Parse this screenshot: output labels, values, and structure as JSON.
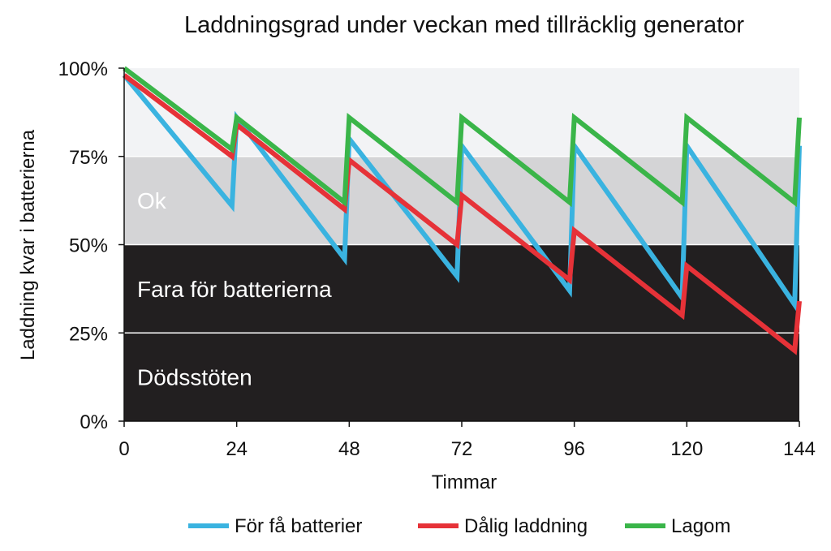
{
  "chart_data": {
    "type": "line",
    "title": "Laddningsgrad under veckan med tillräcklig generator",
    "xlabel": "Timmar",
    "ylabel": "Laddning kvar i batterierna",
    "xlim": [
      0,
      144
    ],
    "ylim": [
      0,
      100
    ],
    "x_ticks": [
      "0",
      "24",
      "48",
      "72",
      "96",
      "120",
      "144"
    ],
    "y_ticks": [
      "0%",
      "25%",
      "50%",
      "75%",
      "100%"
    ],
    "zones": [
      {
        "label": "",
        "from": 75,
        "to": 100,
        "color": "#f2f3f5",
        "text_color": "#ffffff"
      },
      {
        "label": "Ok",
        "from": 50,
        "to": 75,
        "color": "#d4d4d6",
        "text_color": "#ffffff"
      },
      {
        "label": "Fara för batterierna",
        "from": 25,
        "to": 50,
        "color": "#221f20",
        "text_color": "#ffffff"
      },
      {
        "label": "Dödsstöten",
        "from": 0,
        "to": 25,
        "color": "#221f20",
        "text_color": "#ffffff"
      }
    ],
    "legend_position": "bottom",
    "series": [
      {
        "name": "För få batterier",
        "color": "#3ab3e0",
        "points": [
          [
            0,
            98
          ],
          [
            23,
            61
          ],
          [
            24,
            86
          ],
          [
            47,
            46
          ],
          [
            48,
            80
          ],
          [
            71,
            41
          ],
          [
            72,
            78
          ],
          [
            95,
            37
          ],
          [
            96,
            78
          ],
          [
            119,
            35
          ],
          [
            120,
            78
          ],
          [
            143,
            33
          ],
          [
            144,
            78
          ]
        ]
      },
      {
        "name": "Dålig laddning",
        "color": "#e63238",
        "points": [
          [
            0,
            98
          ],
          [
            23,
            75
          ],
          [
            24,
            84
          ],
          [
            47,
            60
          ],
          [
            48,
            74
          ],
          [
            71,
            50
          ],
          [
            72,
            64
          ],
          [
            95,
            40
          ],
          [
            96,
            54
          ],
          [
            119,
            30
          ],
          [
            120,
            44
          ],
          [
            143,
            20
          ],
          [
            144,
            34
          ]
        ]
      },
      {
        "name": "Lagom",
        "color": "#3ab549",
        "points": [
          [
            0,
            100
          ],
          [
            23,
            77
          ],
          [
            24,
            86
          ],
          [
            47,
            62
          ],
          [
            48,
            86
          ],
          [
            71,
            62
          ],
          [
            72,
            86
          ],
          [
            95,
            62
          ],
          [
            96,
            86
          ],
          [
            119,
            62
          ],
          [
            120,
            86
          ],
          [
            143,
            62
          ],
          [
            144,
            86
          ]
        ]
      }
    ]
  }
}
